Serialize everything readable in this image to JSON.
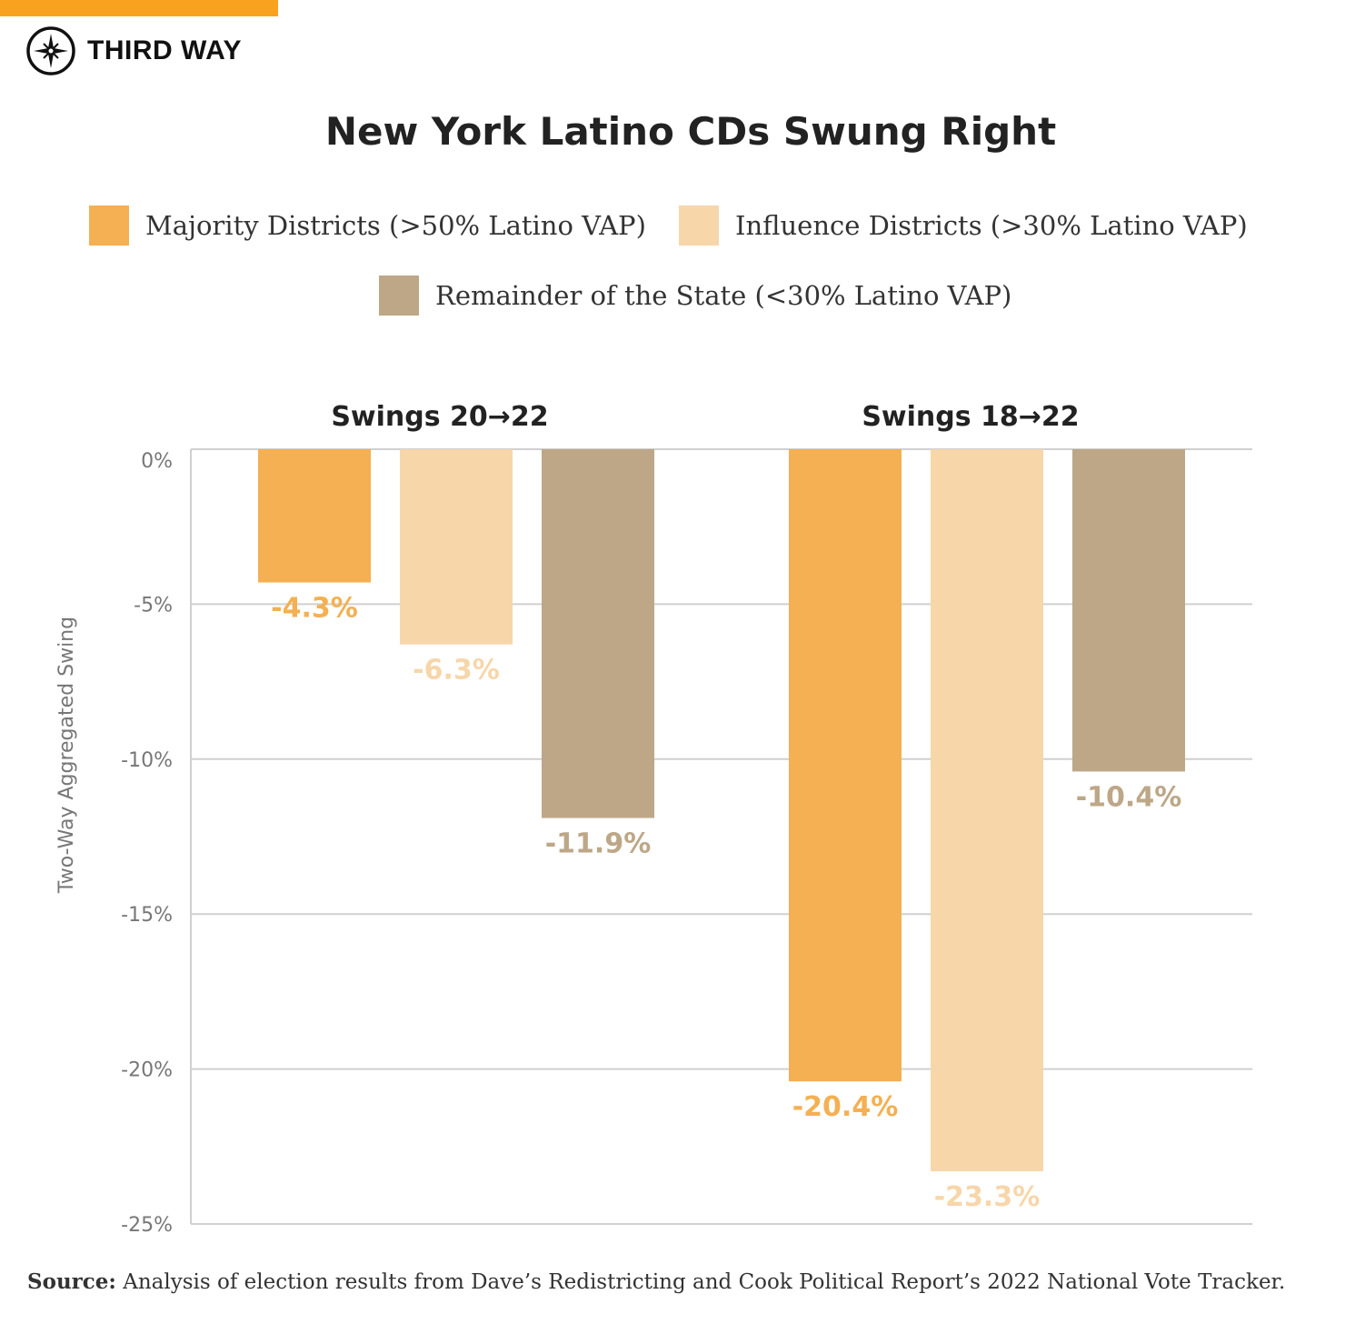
{
  "brand": {
    "name": "THIRD WAY",
    "bar_color": "#f9a21f"
  },
  "source": {
    "label": "Source:",
    "text": "Analysis of election results from Dave’s Redistricting and Cook Political Report’s 2022 National Vote Tracker."
  },
  "chart_data": {
    "type": "bar",
    "title": "New York Latino CDs Swung Right",
    "ylabel": "Two-Way Aggregated Swing",
    "xlabel": "",
    "ylim": [
      -25,
      0
    ],
    "yticks": [
      0,
      -5,
      -10,
      -15,
      -20,
      -25
    ],
    "ytick_labels": [
      "0%",
      "-5%",
      "-10%",
      "-15%",
      "-20%",
      "-25%"
    ],
    "grid": true,
    "legend_position": "top",
    "categories": [
      "Swings 20→22",
      "Swings 18→22"
    ],
    "series": [
      {
        "name": "Majority Districts (>50% Latino VAP)",
        "color": "#f4b052",
        "values": [
          -4.3,
          -20.4
        ],
        "labels": [
          "-4.3%",
          "-20.4%"
        ]
      },
      {
        "name": "Influence Districts (>30% Latino VAP)",
        "color": "#f7d6aa",
        "values": [
          -6.3,
          -23.3
        ],
        "labels": [
          "-6.3%",
          "-23.3%"
        ]
      },
      {
        "name": "Remainder of the State (<30% Latino VAP)",
        "color": "#bda787",
        "values": [
          -11.9,
          -10.4
        ],
        "labels": [
          "-11.9%",
          "-10.4%"
        ]
      }
    ]
  }
}
